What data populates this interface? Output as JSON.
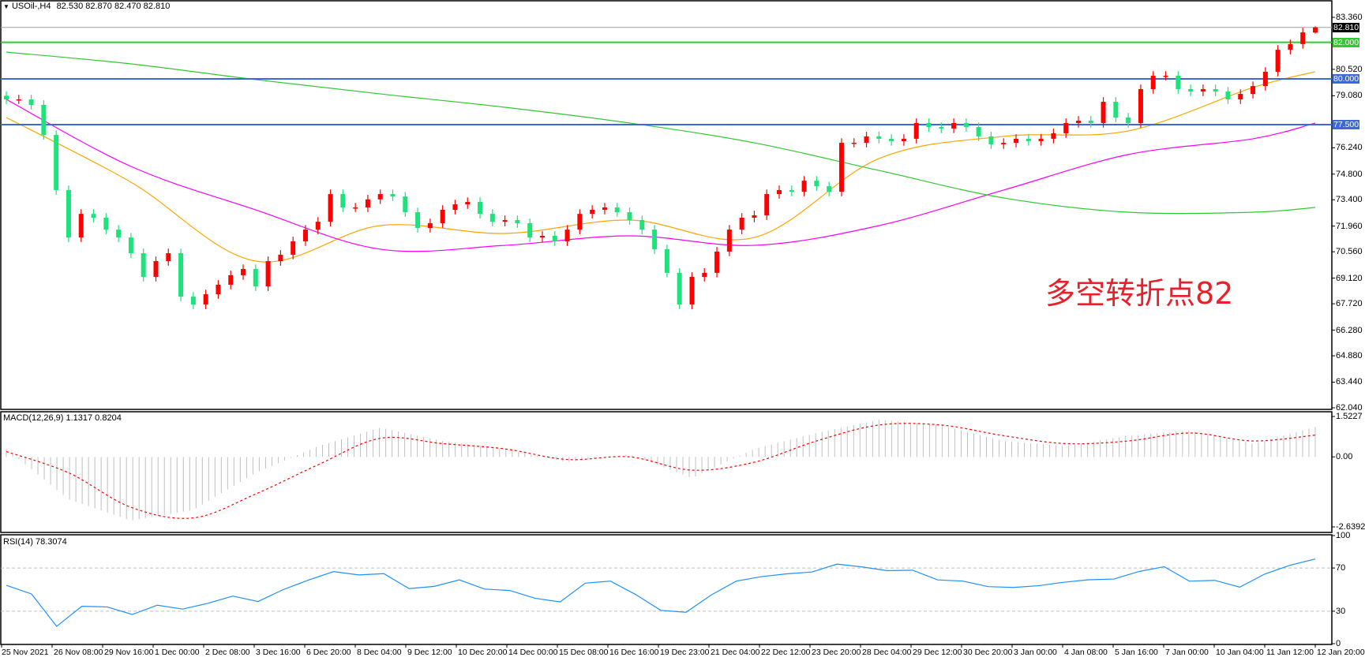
{
  "header": {
    "symbol": "USOil-,H4",
    "ohlc": "82.530 82.870 82.470 82.810"
  },
  "colors": {
    "bull": "#1ee27a",
    "bear": "#ff0000",
    "ma_fast": "#ffa500",
    "ma_mid": "#ff00ff",
    "ma_slow": "#32c832",
    "level_green": "#32c832",
    "level_blue": "#3c68dc",
    "price_line": "#a0a0a0",
    "macd_hist": "#c0c0c0",
    "macd_signal": "#ff0000",
    "rsi": "#1e90ff"
  },
  "chart_data": [
    {
      "type": "candlestick",
      "title": "USOil-,H4",
      "ylim": [
        62.04,
        83.36
      ],
      "y_ticks": [
        "83.360",
        "80.520",
        "79.080",
        "76.240",
        "74.800",
        "73.400",
        "71.960",
        "70.560",
        "69.120",
        "67.720",
        "66.280",
        "64.880",
        "63.440",
        "62.040"
      ],
      "x_ticks": [
        "25 Nov 2021",
        "26 Nov 08:00",
        "29 Nov 16:00",
        "1 Dec 00:00",
        "2 Dec 08:00",
        "3 Dec 16:00",
        "6 Dec 20:00",
        "8 Dec 04:00",
        "9 Dec 12:00",
        "10 Dec 20:00",
        "14 Dec 00:00",
        "15 Dec 08:00",
        "16 Dec 16:00",
        "19 Dec 23:00",
        "21 Dec 04:00",
        "22 Dec 12:00",
        "23 Dec 20:00",
        "28 Dec 04:00",
        "29 Dec 12:00",
        "30 Dec 20:00",
        "3 Jan 00:00",
        "4 Jan 08:00",
        "5 Jan 16:00",
        "7 Jan 00:00",
        "10 Jan 04:00",
        "11 Jan 12:00",
        "12 Jan 20:00"
      ],
      "close": [
        78.88,
        78.88,
        78.58,
        76.94,
        73.93,
        71.34,
        72.63,
        72.42,
        71.77,
        71.34,
        70.48,
        69.19,
        70.05,
        70.48,
        68.11,
        67.68,
        68.24,
        68.76,
        69.28,
        69.62,
        68.67,
        70.05,
        70.4,
        71.13,
        71.77,
        72.2,
        73.71,
        72.98,
        72.98,
        73.42,
        73.71,
        73.58,
        72.72,
        71.86,
        72.12,
        72.85,
        73.15,
        73.28,
        72.63,
        72.2,
        72.29,
        72.12,
        71.34,
        71.43,
        71.13,
        71.77,
        72.63,
        72.85,
        72.98,
        72.72,
        72.29,
        71.77,
        70.7,
        69.41,
        67.68,
        69.19,
        69.41,
        70.57,
        71.77,
        72.42,
        72.55,
        73.71,
        73.93,
        73.84,
        74.44,
        74.14,
        73.84,
        76.51,
        76.51,
        76.86,
        76.73,
        76.6,
        76.73,
        77.59,
        77.37,
        77.29,
        77.59,
        77.37,
        76.86,
        76.43,
        76.51,
        76.73,
        76.6,
        76.73,
        77.03,
        77.59,
        77.72,
        77.59,
        78.75,
        77.89,
        77.59,
        79.44,
        80.17,
        80.17,
        79.44,
        79.31,
        79.44,
        79.31,
        78.88,
        79.18,
        79.61,
        80.39,
        81.59,
        81.9,
        82.54,
        82.81
      ],
      "last_bar": {
        "open": 82.53,
        "high": 82.87,
        "low": 82.47,
        "close": 82.81
      },
      "moving_averages": [
        {
          "color": "#ffa500",
          "values": [
            77.89,
            74.36,
            70.05,
            71.99,
            71.56,
            72.29,
            71.34,
            75.65,
            76.86,
            77.16,
            79.53,
            80.39
          ]
        },
        {
          "color": "#ff00ff",
          "values": [
            78.88,
            75.22,
            72.85,
            70.7,
            70.91,
            71.43,
            70.91,
            71.99,
            73.93,
            75.87,
            76.73,
            77.59
          ]
        },
        {
          "color": "#32c832",
          "values": [
            81.46,
            80.82,
            79.96,
            79.18,
            78.45,
            77.59,
            76.51,
            75.0,
            73.5,
            72.72,
            72.72,
            72.98
          ]
        }
      ],
      "levels": [
        {
          "value": 82.81,
          "label": "82.810",
          "kind": "price"
        },
        {
          "value": 82.0,
          "label": "82.000",
          "kind": "green"
        },
        {
          "value": 80.0,
          "label": "80.000",
          "kind": "blue"
        },
        {
          "value": 77.5,
          "label": "77.500",
          "kind": "blue"
        }
      ],
      "annotation": "多空转折点82"
    },
    {
      "type": "bar",
      "title": "MACD(12,26,9) 1.1317 0.8204",
      "ylim": [
        -2.6392,
        1.5227
      ],
      "y_ticks": [
        "1.5227",
        "0.00",
        "-2.6392"
      ],
      "macd": [
        0.3,
        -1.6,
        -2.4,
        -2.0,
        -0.6,
        0.4,
        1.1,
        0.6,
        0.3,
        -0.2,
        0.1,
        -0.8,
        0.3,
        0.9,
        1.4,
        1.2,
        0.6,
        0.4,
        0.8,
        1.0,
        0.5,
        1.1317
      ],
      "signal": [
        0.2,
        -0.6,
        -1.9,
        -2.3,
        -1.4,
        -0.3,
        0.7,
        0.5,
        0.3,
        -0.1,
        0.0,
        -0.5,
        -0.2,
        0.6,
        1.2,
        1.2,
        0.8,
        0.5,
        0.6,
        0.9,
        0.6,
        0.8204
      ]
    },
    {
      "type": "line",
      "title": "RSI(14) 78.3074",
      "ylim": [
        0,
        100
      ],
      "y_ticks": [
        "100",
        "70",
        "30",
        "0"
      ],
      "levels": [
        70,
        30
      ],
      "values": [
        54,
        46,
        16,
        34.6,
        34,
        27,
        35.6,
        32,
        37.3,
        44,
        39,
        50,
        58.8,
        66.7,
        63.6,
        64.8,
        50.9,
        53,
        59,
        50.5,
        49.2,
        42,
        38.6,
        56,
        57.9,
        45.5,
        30.8,
        29,
        45,
        57.9,
        62,
        64.6,
        66.3,
        73.6,
        71,
        67.5,
        68,
        59,
        57.9,
        52.8,
        52,
        53.6,
        56.8,
        59.1,
        59.8,
        66.8,
        71.2,
        57.8,
        58.6,
        52.3,
        64.5,
        72.6,
        78.3074
      ]
    }
  ]
}
